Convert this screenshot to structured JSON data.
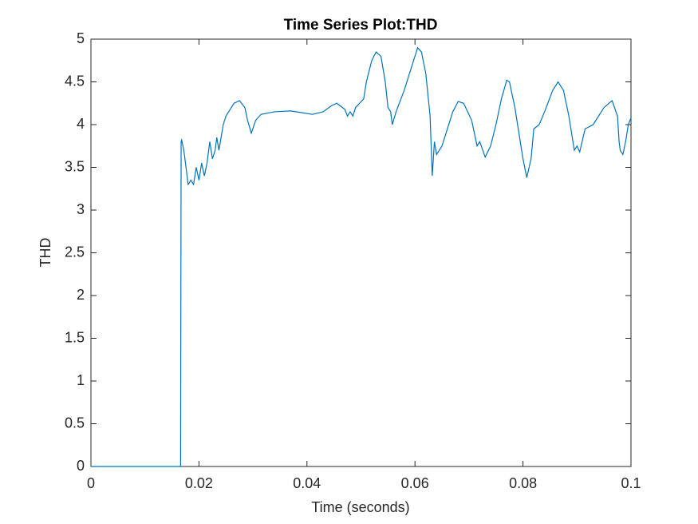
{
  "chart_data": {
    "type": "line",
    "title": "Time Series Plot:THD",
    "x_label": "Time (seconds)",
    "y_label": "THD",
    "x": [
      0,
      0.0166,
      0.0167,
      0.0168,
      0.0172,
      0.018,
      0.0185,
      0.019,
      0.0195,
      0.02,
      0.0205,
      0.021,
      0.0215,
      0.022,
      0.0225,
      0.023,
      0.0233,
      0.0237,
      0.0245,
      0.025,
      0.0265,
      0.0275,
      0.0285,
      0.029,
      0.0297,
      0.0305,
      0.0315,
      0.034,
      0.037,
      0.039,
      0.041,
      0.043,
      0.0445,
      0.0455,
      0.047,
      0.0475,
      0.048,
      0.0485,
      0.049,
      0.0505,
      0.051,
      0.052,
      0.0528,
      0.0537,
      0.0545,
      0.055,
      0.0555,
      0.0558,
      0.0565,
      0.058,
      0.0595,
      0.0605,
      0.0612,
      0.062,
      0.0628,
      0.0632,
      0.0636,
      0.064,
      0.065,
      0.066,
      0.067,
      0.068,
      0.069,
      0.0705,
      0.0715,
      0.072,
      0.073,
      0.074,
      0.075,
      0.076,
      0.077,
      0.0775,
      0.0785,
      0.0795,
      0.08,
      0.0807,
      0.0815,
      0.082,
      0.083,
      0.084,
      0.0855,
      0.0865,
      0.0875,
      0.0885,
      0.0895,
      0.09,
      0.0905,
      0.0915,
      0.093,
      0.095,
      0.0965,
      0.0975,
      0.0978,
      0.098,
      0.0985,
      0.099,
      0.0995,
      0.1
    ],
    "series": [
      {
        "name": "THD",
        "color": "#0072BD",
        "values": [
          0,
          0,
          3.8,
          3.82,
          3.7,
          3.3,
          3.35,
          3.3,
          3.5,
          3.35,
          3.55,
          3.4,
          3.55,
          3.8,
          3.6,
          3.7,
          3.85,
          3.7,
          4.0,
          4.1,
          4.25,
          4.28,
          4.2,
          4.05,
          3.9,
          4.05,
          4.12,
          4.15,
          4.16,
          4.14,
          4.12,
          4.15,
          4.22,
          4.25,
          4.18,
          4.1,
          4.15,
          4.1,
          4.2,
          4.3,
          4.5,
          4.75,
          4.85,
          4.8,
          4.5,
          4.2,
          4.15,
          4.0,
          4.15,
          4.4,
          4.7,
          4.9,
          4.85,
          4.6,
          4.1,
          3.4,
          3.8,
          3.65,
          3.75,
          3.95,
          4.15,
          4.27,
          4.25,
          4.05,
          3.75,
          3.8,
          3.62,
          3.75,
          4.0,
          4.3,
          4.52,
          4.5,
          4.2,
          3.8,
          3.6,
          3.38,
          3.6,
          3.95,
          4.0,
          4.15,
          4.4,
          4.5,
          4.4,
          4.1,
          3.7,
          3.75,
          3.68,
          3.95,
          4.0,
          4.2,
          4.28,
          4.1,
          3.8,
          3.7,
          3.65,
          3.8,
          4.0,
          4.08
        ]
      }
    ],
    "xlim": [
      0,
      0.1
    ],
    "ylim": [
      0,
      5
    ],
    "xticks": [
      0,
      0.02,
      0.04,
      0.06,
      0.08,
      0.1
    ],
    "yticks": [
      0,
      0.5,
      1,
      1.5,
      2,
      2.5,
      3,
      3.5,
      4,
      4.5,
      5
    ],
    "grid": false
  }
}
